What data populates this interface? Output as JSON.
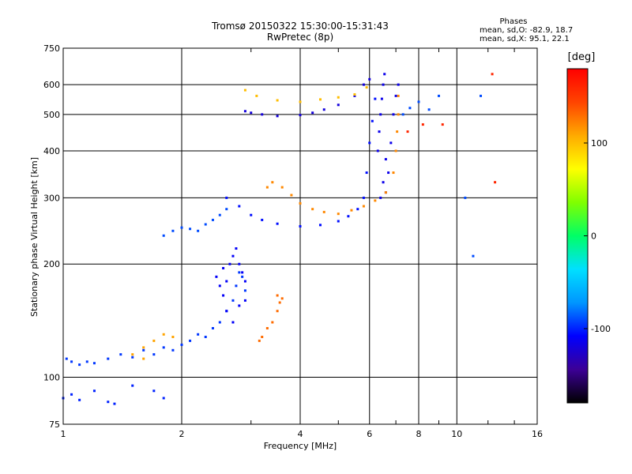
{
  "chart_data": {
    "type": "scatter",
    "title": "Tromsø 20150322 15:30:00-15:31:43",
    "subtitle": "RwPretec (8p)",
    "xlabel": "Frequency [MHz]",
    "ylabel": "Stationary phase Virtual Height [km]",
    "x_scale": "log",
    "y_scale": "log",
    "xlim": [
      1,
      16
    ],
    "ylim": [
      75,
      750
    ],
    "xticks": [
      1,
      2,
      4,
      6,
      8,
      10,
      16
    ],
    "yticks": [
      75,
      100,
      200,
      300,
      400,
      500,
      600,
      750
    ],
    "grid": true,
    "phases": {
      "heading": "Phases",
      "o_stats": "mean, sd,O: -82.9, 18.7",
      "x_stats": "mean, sd,X: 95.1, 22.1"
    },
    "colorbar": {
      "unit": "[deg]",
      "ticks": [
        100,
        0,
        -100
      ],
      "range": [
        -180,
        180
      ],
      "colors": [
        "#000000",
        "#3c0096",
        "#0000ff",
        "#0096ff",
        "#00e0ff",
        "#00ff66",
        "#80ff00",
        "#ffff00",
        "#ffaa00",
        "#ff4400",
        "#ff0000"
      ]
    },
    "series": [
      {
        "phase": -95,
        "points": [
          [
            1.02,
            112
          ],
          [
            1.05,
            110
          ],
          [
            1.1,
            108
          ],
          [
            1.15,
            110
          ],
          [
            1.2,
            109
          ],
          [
            1.3,
            112
          ],
          [
            1.4,
            115
          ],
          [
            1.5,
            113
          ],
          [
            1.6,
            118
          ],
          [
            1.7,
            115
          ],
          [
            1.8,
            120
          ],
          [
            1.9,
            118
          ],
          [
            2.0,
            122
          ],
          [
            2.1,
            125
          ],
          [
            2.2,
            130
          ],
          [
            2.3,
            128
          ],
          [
            2.4,
            135
          ],
          [
            2.5,
            140
          ],
          [
            2.6,
            150
          ],
          [
            2.7,
            160
          ],
          [
            2.75,
            175
          ],
          [
            2.8,
            190
          ],
          [
            2.85,
            185
          ],
          [
            2.9,
            170
          ]
        ]
      },
      {
        "phase": -110,
        "points": [
          [
            2.45,
            185
          ],
          [
            2.5,
            175
          ],
          [
            2.55,
            195
          ],
          [
            2.6,
            180
          ],
          [
            2.65,
            200
          ],
          [
            2.7,
            210
          ],
          [
            2.75,
            220
          ],
          [
            2.8,
            200
          ],
          [
            2.85,
            190
          ],
          [
            2.9,
            180
          ],
          [
            2.55,
            165
          ],
          [
            2.6,
            150
          ],
          [
            2.7,
            140
          ],
          [
            2.8,
            155
          ],
          [
            2.9,
            160
          ]
        ]
      },
      {
        "phase": -100,
        "points": [
          [
            1.0,
            88
          ],
          [
            1.05,
            90
          ],
          [
            1.1,
            87
          ],
          [
            1.2,
            92
          ],
          [
            1.3,
            86
          ],
          [
            1.35,
            85
          ],
          [
            1.5,
            95
          ],
          [
            1.7,
            92
          ],
          [
            1.8,
            88
          ]
        ]
      },
      {
        "phase": -90,
        "points": [
          [
            1.8,
            238
          ],
          [
            1.9,
            245
          ],
          [
            2.0,
            250
          ],
          [
            2.1,
            248
          ],
          [
            2.2,
            245
          ],
          [
            2.3,
            255
          ],
          [
            2.4,
            262
          ],
          [
            2.5,
            270
          ],
          [
            2.6,
            280
          ]
        ]
      },
      {
        "phase": -105,
        "points": [
          [
            2.6,
            300
          ],
          [
            2.8,
            285
          ],
          [
            3.0,
            270
          ],
          [
            3.2,
            262
          ],
          [
            3.5,
            256
          ],
          [
            4.0,
            252
          ],
          [
            4.5,
            254
          ],
          [
            5.0,
            260
          ],
          [
            5.3,
            268
          ],
          [
            5.6,
            280
          ],
          [
            5.8,
            300
          ],
          [
            5.9,
            350
          ],
          [
            6.0,
            420
          ],
          [
            6.1,
            480
          ],
          [
            6.2,
            550
          ]
        ]
      },
      {
        "phase": -120,
        "points": [
          [
            2.9,
            510
          ],
          [
            3.0,
            505
          ],
          [
            3.2,
            500
          ],
          [
            3.5,
            495
          ],
          [
            4.0,
            498
          ],
          [
            4.3,
            505
          ],
          [
            4.6,
            515
          ],
          [
            5.0,
            530
          ],
          [
            5.5,
            560
          ],
          [
            5.8,
            600
          ],
          [
            6.0,
            620
          ]
        ]
      },
      {
        "phase": -115,
        "points": [
          [
            6.3,
            400
          ],
          [
            6.35,
            450
          ],
          [
            6.4,
            500
          ],
          [
            6.45,
            550
          ],
          [
            6.5,
            600
          ],
          [
            6.55,
            640
          ],
          [
            6.6,
            380
          ],
          [
            6.7,
            350
          ],
          [
            6.8,
            420
          ],
          [
            6.9,
            500
          ],
          [
            7.0,
            560
          ],
          [
            7.1,
            600
          ],
          [
            6.4,
            300
          ],
          [
            6.5,
            330
          ],
          [
            6.6,
            310
          ]
        ]
      },
      {
        "phase": 120,
        "points": [
          [
            3.3,
            320
          ],
          [
            3.4,
            330
          ],
          [
            3.6,
            320
          ],
          [
            3.8,
            305
          ],
          [
            4.0,
            290
          ],
          [
            4.3,
            280
          ],
          [
            4.6,
            275
          ],
          [
            5.0,
            272
          ],
          [
            5.4,
            278
          ],
          [
            5.8,
            285
          ],
          [
            6.2,
            295
          ],
          [
            6.6,
            310
          ],
          [
            6.9,
            350
          ],
          [
            7.0,
            400
          ],
          [
            7.05,
            450
          ],
          [
            7.1,
            500
          ],
          [
            7.1,
            560
          ]
        ]
      },
      {
        "phase": 130,
        "points": [
          [
            3.15,
            125
          ],
          [
            3.2,
            128
          ],
          [
            3.3,
            135
          ],
          [
            3.4,
            140
          ],
          [
            3.5,
            150
          ],
          [
            3.55,
            158
          ],
          [
            3.6,
            162
          ],
          [
            3.5,
            165
          ]
        ]
      },
      {
        "phase": 110,
        "points": [
          [
            1.5,
            115
          ],
          [
            1.6,
            120
          ],
          [
            1.7,
            125
          ],
          [
            1.8,
            130
          ],
          [
            1.9,
            128
          ],
          [
            1.6,
            112
          ]
        ]
      },
      {
        "phase": 100,
        "points": [
          [
            2.9,
            580
          ],
          [
            3.1,
            560
          ],
          [
            3.5,
            545
          ],
          [
            4.0,
            540
          ],
          [
            4.5,
            548
          ],
          [
            5.0,
            555
          ],
          [
            5.5,
            565
          ],
          [
            5.9,
            590
          ]
        ]
      },
      {
        "phase": -90,
        "points": [
          [
            7.3,
            500
          ],
          [
            7.6,
            520
          ],
          [
            8.0,
            540
          ],
          [
            8.5,
            515
          ],
          [
            9.0,
            560
          ],
          [
            10.5,
            300
          ],
          [
            11.0,
            210
          ],
          [
            11.5,
            560
          ]
        ]
      },
      {
        "phase": 160,
        "points": [
          [
            7.5,
            450
          ],
          [
            8.2,
            470
          ],
          [
            9.2,
            470
          ],
          [
            12.3,
            640
          ],
          [
            12.5,
            330
          ]
        ]
      }
    ]
  }
}
